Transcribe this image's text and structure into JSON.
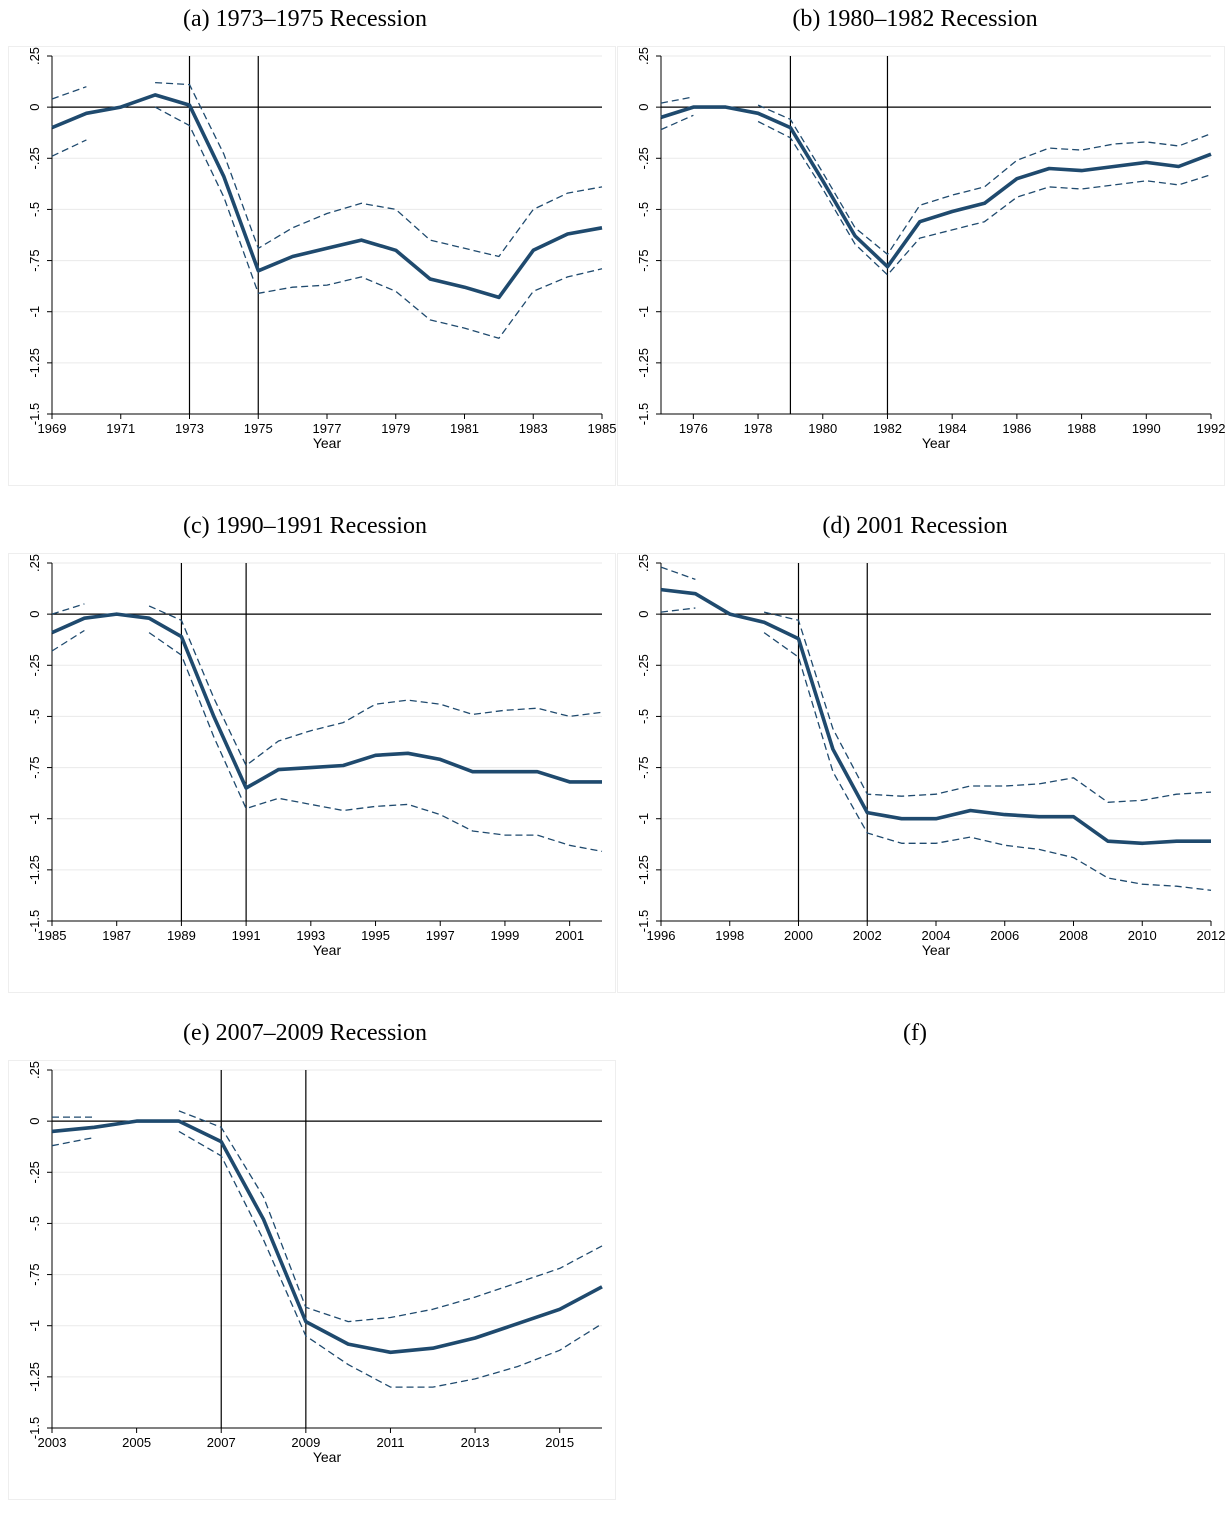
{
  "chart_data": [
    {
      "type": "line",
      "title": "(a) 1973–1975 Recession",
      "xlabel": "Year",
      "ylabel": "",
      "ylim": [
        -1.5,
        0.25
      ],
      "xlim": [
        1969,
        1985
      ],
      "yticks": [
        ".25",
        "0",
        "-.25",
        "-.5",
        "-.75",
        "-1",
        "-1.25",
        "-1.5"
      ],
      "ytick_values": [
        0.25,
        0,
        -0.25,
        -0.5,
        -0.75,
        -1,
        -1.25,
        -1.5
      ],
      "xticks": [
        "1969",
        "1971",
        "1973",
        "1975",
        "1977",
        "1979",
        "1981",
        "1983",
        "1985"
      ],
      "vlines": [
        1973,
        1975
      ],
      "grid": true,
      "series": [
        {
          "role": "estimate",
          "segments": [
            {
              "x": [
                1969,
                1970,
                1971,
                1972,
                1973,
                1974,
                1975,
                1976,
                1977,
                1978,
                1979,
                1980,
                1981,
                1982,
                1983,
                1984,
                1985
              ],
              "y": [
                -0.1,
                -0.03,
                0,
                0.06,
                0.01,
                -0.34,
                -0.8,
                -0.73,
                -0.69,
                -0.65,
                -0.7,
                -0.84,
                -0.88,
                -0.93,
                -0.7,
                -0.62,
                -0.59
              ]
            }
          ]
        },
        {
          "role": "upper-ci",
          "segments": [
            {
              "x": [
                1969,
                1970
              ],
              "y": [
                0.04,
                0.1
              ]
            },
            {
              "x": [
                1972,
                1973,
                1974,
                1975,
                1976,
                1977,
                1978,
                1979,
                1980,
                1981,
                1982,
                1983,
                1984,
                1985
              ],
              "y": [
                0.12,
                0.11,
                -0.23,
                -0.69,
                -0.59,
                -0.52,
                -0.47,
                -0.5,
                -0.65,
                -0.69,
                -0.73,
                -0.5,
                -0.42,
                -0.39
              ]
            }
          ]
        },
        {
          "role": "lower-ci",
          "segments": [
            {
              "x": [
                1969,
                1970
              ],
              "y": [
                -0.24,
                -0.16
              ]
            },
            {
              "x": [
                1972,
                1973,
                1974,
                1975,
                1976,
                1977,
                1978,
                1979,
                1980,
                1981,
                1982,
                1983,
                1984,
                1985
              ],
              "y": [
                0.0,
                -0.09,
                -0.44,
                -0.91,
                -0.88,
                -0.87,
                -0.83,
                -0.9,
                -1.04,
                -1.08,
                -1.13,
                -0.9,
                -0.83,
                -0.79
              ]
            }
          ]
        }
      ]
    },
    {
      "type": "line",
      "title": "(b) 1980–1982 Recession",
      "xlabel": "Year",
      "ylabel": "",
      "ylim": [
        -1.5,
        0.25
      ],
      "xlim": [
        1975,
        1992
      ],
      "yticks": [
        ".25",
        "0",
        "-.25",
        "-.5",
        "-.75",
        "-1",
        "-1.25",
        "-1.5"
      ],
      "ytick_values": [
        0.25,
        0,
        -0.25,
        -0.5,
        -0.75,
        -1,
        -1.25,
        -1.5
      ],
      "xticks": [
        "1976",
        "1978",
        "1980",
        "1982",
        "1984",
        "1986",
        "1988",
        "1990",
        "1992"
      ],
      "vlines": [
        1979,
        1982
      ],
      "grid": true,
      "series": [
        {
          "role": "estimate",
          "segments": [
            {
              "x": [
                1975,
                1976,
                1977,
                1978,
                1979,
                1980,
                1981,
                1982,
                1983,
                1984,
                1985,
                1986,
                1987,
                1988,
                1989,
                1990,
                1991,
                1992
              ],
              "y": [
                -0.05,
                0.0,
                0.0,
                -0.03,
                -0.1,
                -0.36,
                -0.63,
                -0.78,
                -0.56,
                -0.51,
                -0.47,
                -0.35,
                -0.3,
                -0.31,
                -0.29,
                -0.27,
                -0.29,
                -0.23
              ]
            }
          ]
        },
        {
          "role": "upper-ci",
          "segments": [
            {
              "x": [
                1975,
                1976
              ],
              "y": [
                0.02,
                0.05
              ]
            },
            {
              "x": [
                1978,
                1979,
                1980,
                1981,
                1982,
                1983,
                1984,
                1985,
                1986,
                1987,
                1988,
                1989,
                1990,
                1991,
                1992
              ],
              "y": [
                0.01,
                -0.06,
                -0.32,
                -0.59,
                -0.72,
                -0.48,
                -0.43,
                -0.39,
                -0.26,
                -0.2,
                -0.21,
                -0.18,
                -0.17,
                -0.19,
                -0.13
              ]
            }
          ]
        },
        {
          "role": "lower-ci",
          "segments": [
            {
              "x": [
                1975,
                1976
              ],
              "y": [
                -0.11,
                -0.04
              ]
            },
            {
              "x": [
                1978,
                1979,
                1980,
                1981,
                1982,
                1983,
                1984,
                1985,
                1986,
                1987,
                1988,
                1989,
                1990,
                1991,
                1992
              ],
              "y": [
                -0.07,
                -0.15,
                -0.4,
                -0.67,
                -0.82,
                -0.64,
                -0.6,
                -0.56,
                -0.44,
                -0.39,
                -0.4,
                -0.38,
                -0.36,
                -0.38,
                -0.33
              ]
            }
          ]
        }
      ]
    },
    {
      "type": "line",
      "title": "(c) 1990–1991 Recession",
      "xlabel": "Year",
      "ylabel": "",
      "ylim": [
        -1.5,
        0.25
      ],
      "xlim": [
        1985,
        2002
      ],
      "yticks": [
        ".25",
        "0",
        "-.25",
        "-.5",
        "-.75",
        "-1",
        "-1.25",
        "-1.5"
      ],
      "ytick_values": [
        0.25,
        0,
        -0.25,
        -0.5,
        -0.75,
        -1,
        -1.25,
        -1.5
      ],
      "xticks": [
        "1985",
        "1987",
        "1989",
        "1991",
        "1993",
        "1995",
        "1997",
        "1999",
        "2001"
      ],
      "vlines": [
        1989,
        1991
      ],
      "grid": true,
      "series": [
        {
          "role": "estimate",
          "segments": [
            {
              "x": [
                1985,
                1986,
                1987,
                1988,
                1989,
                1990,
                1991,
                1992,
                1993,
                1994,
                1995,
                1996,
                1997,
                1998,
                1999,
                2000,
                2001,
                2002
              ],
              "y": [
                -0.09,
                -0.02,
                0,
                -0.02,
                -0.11,
                -0.5,
                -0.85,
                -0.76,
                -0.75,
                -0.74,
                -0.69,
                -0.68,
                -0.71,
                -0.77,
                -0.77,
                -0.77,
                -0.82,
                -0.82
              ]
            }
          ]
        },
        {
          "role": "upper-ci",
          "segments": [
            {
              "x": [
                1985,
                1986
              ],
              "y": [
                0.0,
                0.05
              ]
            },
            {
              "x": [
                1988,
                1989,
                1990,
                1991,
                1992,
                1993,
                1994,
                1995,
                1996,
                1997,
                1998,
                1999,
                2000,
                2001,
                2002
              ],
              "y": [
                0.04,
                -0.03,
                -0.41,
                -0.74,
                -0.62,
                -0.57,
                -0.53,
                -0.44,
                -0.42,
                -0.44,
                -0.49,
                -0.47,
                -0.46,
                -0.5,
                -0.48
              ]
            }
          ]
        },
        {
          "role": "lower-ci",
          "segments": [
            {
              "x": [
                1985,
                1986
              ],
              "y": [
                -0.18,
                -0.08
              ]
            },
            {
              "x": [
                1988,
                1989,
                1990,
                1991,
                1992,
                1993,
                1994,
                1995,
                1996,
                1997,
                1998,
                1999,
                2000,
                2001,
                2002
              ],
              "y": [
                -0.09,
                -0.2,
                -0.6,
                -0.95,
                -0.9,
                -0.93,
                -0.96,
                -0.94,
                -0.93,
                -0.98,
                -1.06,
                -1.08,
                -1.08,
                -1.13,
                -1.16
              ]
            }
          ]
        }
      ]
    },
    {
      "type": "line",
      "title": "(d) 2001 Recession",
      "xlabel": "Year",
      "ylabel": "",
      "ylim": [
        -1.5,
        0.25
      ],
      "xlim": [
        1996,
        2012
      ],
      "yticks": [
        ".25",
        "0",
        "-.25",
        "-.5",
        "-.75",
        "-1",
        "-1.25",
        "-1.5"
      ],
      "ytick_values": [
        0.25,
        0,
        -0.25,
        -0.5,
        -0.75,
        -1,
        -1.25,
        -1.5
      ],
      "xticks": [
        "1996",
        "1998",
        "2000",
        "2002",
        "2004",
        "2006",
        "2008",
        "2010",
        "2012"
      ],
      "vlines": [
        2000,
        2002
      ],
      "grid": true,
      "series": [
        {
          "role": "estimate",
          "segments": [
            {
              "x": [
                1996,
                1997,
                1998,
                1999,
                2000,
                2001,
                2002,
                2003,
                2004,
                2005,
                2006,
                2007,
                2008,
                2009,
                2010,
                2011,
                2012
              ],
              "y": [
                0.12,
                0.1,
                0.0,
                -0.04,
                -0.12,
                -0.66,
                -0.97,
                -1.0,
                -1.0,
                -0.96,
                -0.98,
                -0.99,
                -0.99,
                -1.11,
                -1.12,
                -1.11,
                -1.11
              ]
            }
          ]
        },
        {
          "role": "upper-ci",
          "segments": [
            {
              "x": [
                1996,
                1997
              ],
              "y": [
                0.23,
                0.17
              ]
            },
            {
              "x": [
                1999,
                2000,
                2001,
                2002,
                2003,
                2004,
                2005,
                2006,
                2007,
                2008,
                2009,
                2010,
                2011,
                2012
              ],
              "y": [
                0.01,
                -0.03,
                -0.56,
                -0.88,
                -0.89,
                -0.88,
                -0.84,
                -0.84,
                -0.83,
                -0.8,
                -0.92,
                -0.91,
                -0.88,
                -0.87
              ]
            }
          ]
        },
        {
          "role": "lower-ci",
          "segments": [
            {
              "x": [
                1996,
                1997
              ],
              "y": [
                0.01,
                0.03
              ]
            },
            {
              "x": [
                1999,
                2000,
                2001,
                2002,
                2003,
                2004,
                2005,
                2006,
                2007,
                2008,
                2009,
                2010,
                2011,
                2012
              ],
              "y": [
                -0.09,
                -0.21,
                -0.77,
                -1.07,
                -1.12,
                -1.12,
                -1.09,
                -1.13,
                -1.15,
                -1.19,
                -1.29,
                -1.32,
                -1.33,
                -1.35
              ]
            }
          ]
        }
      ]
    },
    {
      "type": "line",
      "title": "(e) 2007–2009 Recession",
      "xlabel": "Year",
      "ylabel": "",
      "ylim": [
        -1.5,
        0.25
      ],
      "xlim": [
        2003,
        2016
      ],
      "yticks": [
        ".25",
        "0",
        "-.25",
        "-.5",
        "-.75",
        "-1",
        "-1.25",
        "-1.5"
      ],
      "ytick_values": [
        0.25,
        0,
        -0.25,
        -0.5,
        -0.75,
        -1,
        -1.25,
        -1.5
      ],
      "xticks": [
        "2003",
        "2005",
        "2007",
        "2009",
        "2011",
        "2013",
        "2015"
      ],
      "vlines": [
        2007,
        2009
      ],
      "grid": true,
      "series": [
        {
          "role": "estimate",
          "segments": [
            {
              "x": [
                2003,
                2004,
                2005,
                2006,
                2007,
                2008,
                2009,
                2010,
                2011,
                2012,
                2013,
                2014,
                2015,
                2016
              ],
              "y": [
                -0.05,
                -0.03,
                0.0,
                0.0,
                -0.1,
                -0.48,
                -0.98,
                -1.09,
                -1.13,
                -1.11,
                -1.06,
                -0.99,
                -0.92,
                -0.81
              ]
            }
          ]
        },
        {
          "role": "upper-ci",
          "segments": [
            {
              "x": [
                2003,
                2004
              ],
              "y": [
                0.02,
                0.02
              ]
            },
            {
              "x": [
                2006,
                2007,
                2008,
                2009,
                2010,
                2011,
                2012,
                2013,
                2014,
                2015,
                2016
              ],
              "y": [
                0.05,
                -0.03,
                -0.37,
                -0.91,
                -0.98,
                -0.96,
                -0.92,
                -0.86,
                -0.79,
                -0.72,
                -0.61
              ]
            }
          ]
        },
        {
          "role": "lower-ci",
          "segments": [
            {
              "x": [
                2003,
                2004
              ],
              "y": [
                -0.12,
                -0.08
              ]
            },
            {
              "x": [
                2006,
                2007,
                2008,
                2009,
                2010,
                2011,
                2012,
                2013,
                2014,
                2015,
                2016
              ],
              "y": [
                -0.05,
                -0.17,
                -0.58,
                -1.05,
                -1.19,
                -1.3,
                -1.3,
                -1.26,
                -1.2,
                -1.12,
                -0.99
              ]
            }
          ]
        }
      ]
    }
  ],
  "panel_f": {
    "title": "(f)"
  }
}
